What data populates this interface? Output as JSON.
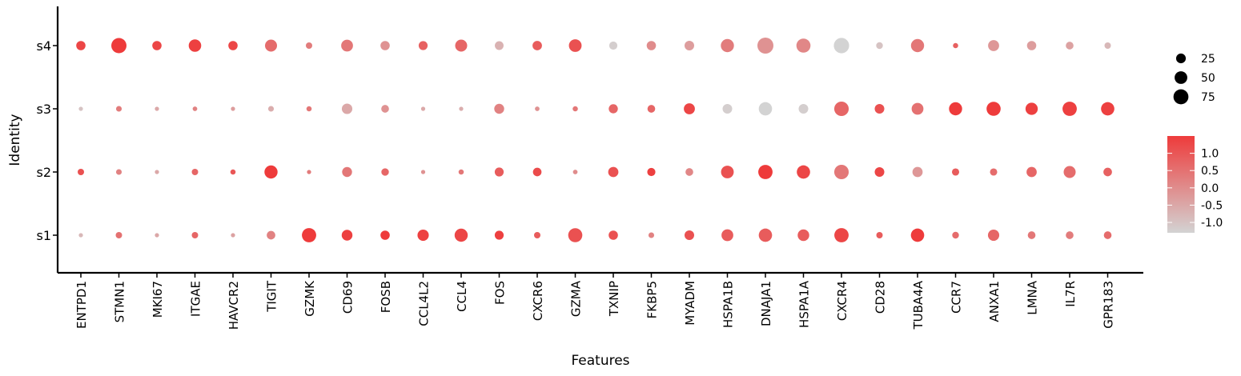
{
  "chart_data": {
    "type": "dotplot",
    "xlabel": "Features",
    "ylabel": "Identity",
    "features": [
      "ENTPD1",
      "STMN1",
      "MKI67",
      "ITGAE",
      "HAVCR2",
      "TIGIT",
      "GZMK",
      "CD69",
      "FOSB",
      "CCL4L2",
      "CCL4",
      "FOS",
      "CXCR6",
      "GZMA",
      "TXNIP",
      "FKBP5",
      "MYADM",
      "HSPA1B",
      "DNAJA1",
      "HSPA1A",
      "CXCR4",
      "CD28",
      "TUBA4A",
      "CCR7",
      "ANXA1",
      "LMNA",
      "IL7R",
      "GPR183"
    ],
    "identities": [
      "s4",
      "s3",
      "s2",
      "s1"
    ],
    "size_legend": {
      "label_values": [
        "25",
        "50",
        "75"
      ],
      "values": [
        25,
        50,
        75
      ]
    },
    "color_legend": {
      "tick_labels": [
        "1.0",
        "0.5",
        "0.0",
        "-0.5",
        "-1.0"
      ],
      "ticks": [
        1.0,
        0.5,
        0.0,
        -0.5,
        -1.0
      ],
      "range": [
        -1.3,
        1.5
      ],
      "low_color": "#d3d3d3",
      "high_color": "#ee3b3b"
    },
    "points": {
      "s4": [
        [
          1.3,
          18
        ],
        [
          1.5,
          70
        ],
        [
          1.3,
          18
        ],
        [
          1.4,
          42
        ],
        [
          1.3,
          18
        ],
        [
          0.6,
          38
        ],
        [
          0.3,
          5
        ],
        [
          0.4,
          36
        ],
        [
          -0.1,
          18
        ],
        [
          0.8,
          16
        ],
        [
          0.7,
          38
        ],
        [
          -0.7,
          15
        ],
        [
          0.9,
          19
        ],
        [
          1.1,
          44
        ],
        [
          -1.2,
          12
        ],
        [
          0.0,
          18
        ],
        [
          -0.3,
          20
        ],
        [
          0.3,
          48
        ],
        [
          -0.1,
          80
        ],
        [
          0.1,
          58
        ],
        [
          -1.3,
          72
        ],
        [
          -1.0,
          6
        ],
        [
          0.4,
          48
        ],
        [
          0.8,
          2
        ],
        [
          -0.2,
          30
        ],
        [
          -0.3,
          18
        ],
        [
          -0.4,
          10
        ],
        [
          -0.8,
          5
        ]
      ],
      "s3": [
        [
          -1.0,
          0.5
        ],
        [
          0.3,
          3
        ],
        [
          -0.5,
          0.5
        ],
        [
          0.2,
          1
        ],
        [
          -0.3,
          0.5
        ],
        [
          -0.6,
          3
        ],
        [
          0.4,
          2
        ],
        [
          -0.5,
          26
        ],
        [
          -0.1,
          10
        ],
        [
          -0.5,
          0.5
        ],
        [
          -0.6,
          0.5
        ],
        [
          0.2,
          22
        ],
        [
          -0.1,
          1
        ],
        [
          0.4,
          2
        ],
        [
          0.7,
          17
        ],
        [
          0.7,
          10
        ],
        [
          1.3,
          30
        ],
        [
          -1.2,
          20
        ],
        [
          -1.3,
          50
        ],
        [
          -1.2,
          20
        ],
        [
          0.7,
          62
        ],
        [
          1.1,
          20
        ],
        [
          0.5,
          36
        ],
        [
          1.6,
          48
        ],
        [
          1.6,
          58
        ],
        [
          1.4,
          40
        ],
        [
          1.4,
          60
        ],
        [
          1.4,
          50
        ]
      ],
      "s2": [
        [
          1.1,
          5
        ],
        [
          0.2,
          3
        ],
        [
          -0.5,
          0.5
        ],
        [
          0.7,
          5
        ],
        [
          1.0,
          2
        ],
        [
          1.5,
          48
        ],
        [
          0.3,
          0.5
        ],
        [
          0.4,
          22
        ],
        [
          0.7,
          9
        ],
        [
          -0.1,
          0.5
        ],
        [
          0.4,
          2
        ],
        [
          0.9,
          16
        ],
        [
          1.2,
          14
        ],
        [
          0.0,
          1
        ],
        [
          1.1,
          24
        ],
        [
          1.4,
          12
        ],
        [
          0.1,
          10
        ],
        [
          1.1,
          44
        ],
        [
          1.5,
          60
        ],
        [
          1.3,
          50
        ],
        [
          0.4,
          62
        ],
        [
          1.3,
          20
        ],
        [
          -0.2,
          24
        ],
        [
          0.9,
          8
        ],
        [
          0.6,
          8
        ],
        [
          0.7,
          24
        ],
        [
          0.6,
          38
        ],
        [
          0.8,
          14
        ]
      ],
      "s1": [
        [
          -0.8,
          0.5
        ],
        [
          0.5,
          5
        ],
        [
          -0.5,
          0.5
        ],
        [
          0.7,
          5
        ],
        [
          -0.4,
          0.5
        ],
        [
          0.2,
          14
        ],
        [
          1.5,
          60
        ],
        [
          1.4,
          28
        ],
        [
          1.5,
          18
        ],
        [
          1.4,
          32
        ],
        [
          1.3,
          48
        ],
        [
          1.4,
          16
        ],
        [
          0.9,
          5
        ],
        [
          1.1,
          58
        ],
        [
          1.1,
          18
        ],
        [
          0.2,
          3
        ],
        [
          1.1,
          20
        ],
        [
          0.9,
          36
        ],
        [
          0.9,
          50
        ],
        [
          0.9,
          34
        ],
        [
          1.3,
          60
        ],
        [
          0.9,
          5
        ],
        [
          1.5,
          50
        ],
        [
          0.6,
          6
        ],
        [
          0.7,
          32
        ],
        [
          0.4,
          10
        ],
        [
          0.3,
          10
        ],
        [
          0.6,
          10
        ]
      ]
    }
  }
}
